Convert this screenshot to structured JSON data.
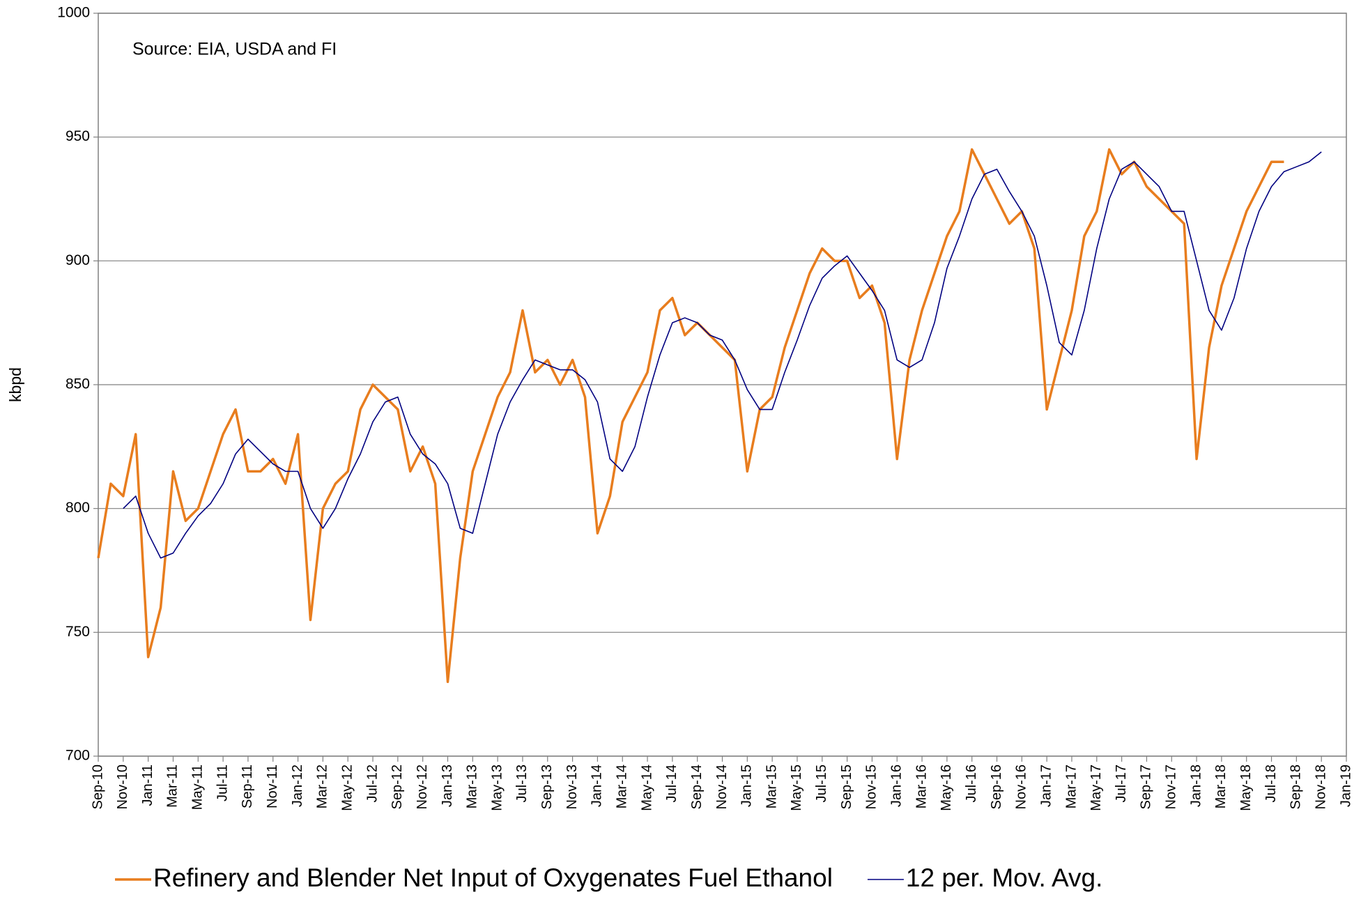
{
  "chart_data": {
    "type": "line",
    "annotation": "Source: EIA, USDA and FI",
    "y_label": "kbpd",
    "categories": [
      "Sep-10",
      null,
      "Nov-10",
      null,
      "Jan-11",
      null,
      "Mar-11",
      null,
      "May-11",
      null,
      "Jul-11",
      null,
      "Sep-11",
      null,
      "Nov-11",
      null,
      "Jan-12",
      null,
      "Mar-12",
      null,
      "May-12",
      null,
      "Jul-12",
      null,
      "Sep-12",
      null,
      "Nov-12",
      null,
      "Jan-13",
      null,
      "Mar-13",
      null,
      "May-13",
      null,
      "Jul-13",
      null,
      "Sep-13",
      null,
      "Nov-13",
      null,
      "Jan-14",
      null,
      "Mar-14",
      null,
      "May-14",
      null,
      "Jul-14",
      null,
      "Sep-14",
      null,
      "Nov-14",
      null,
      "Jan-15",
      null,
      "Mar-15",
      null,
      "May-15",
      null,
      "Jul-15",
      null,
      "Sep-15",
      null,
      "Nov-15",
      null,
      "Jan-16",
      null,
      "Mar-16",
      null,
      "May-16",
      null,
      "Jul-16",
      null,
      "Sep-16",
      null,
      "Nov-16",
      null,
      "Jan-17",
      null,
      "Mar-17",
      null,
      "May-17",
      null,
      "Jul-17",
      null,
      "Sep-17",
      null,
      "Nov-17",
      null,
      "Jan-18",
      null,
      "Mar-18",
      null,
      "May-18",
      null,
      "Jul-18",
      null,
      "Sep-18",
      null,
      "Nov-18",
      null,
      "Jan-19"
    ],
    "series": [
      {
        "name": "Refinery and Blender Net Input of Oxygenates Fuel Ethanol",
        "color": "#e87d1e",
        "width": 3.5,
        "values": [
          780,
          810,
          805,
          830,
          740,
          760,
          815,
          795,
          800,
          815,
          830,
          840,
          815,
          815,
          820,
          810,
          830,
          755,
          800,
          810,
          815,
          840,
          850,
          845,
          840,
          815,
          825,
          810,
          730,
          780,
          815,
          830,
          845,
          855,
          880,
          855,
          860,
          850,
          860,
          845,
          790,
          805,
          835,
          845,
          855,
          880,
          885,
          870,
          875,
          870,
          865,
          860,
          815,
          840,
          845,
          865,
          880,
          895,
          905,
          900,
          900,
          885,
          890,
          875,
          820,
          860,
          880,
          895,
          910,
          920,
          945,
          935,
          925,
          915,
          920,
          905,
          840,
          860,
          880,
          910,
          920,
          945,
          935,
          940,
          930,
          925,
          920,
          915,
          820,
          865,
          890,
          905,
          920,
          930,
          940,
          940,
          null,
          null,
          null,
          null,
          null
        ]
      },
      {
        "name": "12 per. Mov. Avg.",
        "color": "#000080",
        "width": 1.6,
        "values": [
          null,
          null,
          800,
          805,
          790,
          780,
          782,
          790,
          797,
          802,
          810,
          822,
          828,
          823,
          818,
          815,
          815,
          800,
          792,
          800,
          812,
          822,
          835,
          843,
          845,
          830,
          822,
          818,
          810,
          792,
          790,
          810,
          830,
          843,
          852,
          860,
          858,
          856,
          856,
          852,
          843,
          820,
          815,
          825,
          845,
          862,
          875,
          877,
          875,
          870,
          868,
          860,
          848,
          840,
          840,
          855,
          868,
          882,
          893,
          898,
          902,
          895,
          888,
          880,
          860,
          857,
          860,
          875,
          897,
          910,
          925,
          935,
          937,
          928,
          920,
          910,
          890,
          867,
          862,
          880,
          905,
          925,
          937,
          940,
          935,
          930,
          920,
          920,
          900,
          880,
          872,
          885,
          905,
          920,
          930,
          936,
          938,
          940,
          944,
          null,
          null
        ]
      }
    ],
    "ylim": [
      700,
      1000
    ],
    "yticks": [
      700,
      750,
      800,
      850,
      900,
      950,
      1000
    ],
    "grid": true
  }
}
